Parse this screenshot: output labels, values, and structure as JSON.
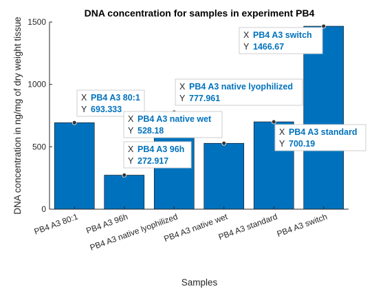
{
  "chart_data": {
    "type": "bar",
    "title": "DNA concentration for samples in experiment PB4",
    "xlabel": "Samples",
    "ylabel": "DNA concentration in ng/mg of dry weight tissue",
    "categories": [
      "PB4 A3 80:1",
      "PB4 A3 96h",
      "PB4 A3 native lyophilized",
      "PB4 A3 native wet",
      "PB4 A3 standard",
      "PB4 A3 switch"
    ],
    "values": [
      693.333,
      272.917,
      777.961,
      528.18,
      700.19,
      1466.67
    ],
    "ylim": [
      0,
      1500
    ],
    "yticks": [
      "0",
      "500",
      "1000",
      "1500"
    ],
    "bar_color": "#0072bd",
    "grid": false,
    "legend": "none",
    "datatips": [
      {
        "x_key": "X",
        "x_value": "PB4 A3 80:1",
        "y_key": "Y",
        "y_value": "693.333"
      },
      {
        "x_key": "X",
        "x_value": "PB4 A3 96h",
        "y_key": "Y",
        "y_value": "272.917"
      },
      {
        "x_key": "X",
        "x_value": "PB4 A3 native lyophilized",
        "y_key": "Y",
        "y_value": "777.961"
      },
      {
        "x_key": "X",
        "x_value": "PB4 A3 native wet",
        "y_key": "Y",
        "y_value": "528.18"
      },
      {
        "x_key": "X",
        "x_value": "PB4 A3 standard",
        "y_key": "Y",
        "y_value": "700.19"
      },
      {
        "x_key": "X",
        "x_value": "PB4 A3 switch",
        "y_key": "Y",
        "y_value": "1466.67"
      }
    ]
  }
}
